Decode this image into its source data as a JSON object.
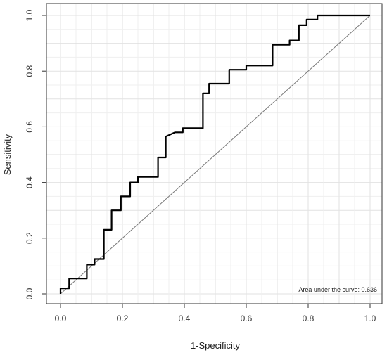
{
  "chart_data": {
    "type": "line",
    "xlabel": "1-Specificity",
    "ylabel": "Sensitivity",
    "xlim": [
      0,
      1
    ],
    "ylim": [
      0,
      1
    ],
    "xticks": [
      "0.0",
      "0.2",
      "0.4",
      "0.6",
      "0.8",
      "1.0"
    ],
    "yticks": [
      "0.0",
      "0.2",
      "0.4",
      "0.6",
      "0.8",
      "1.0"
    ],
    "grid": true,
    "annotation": "Area under the curve: 0.636",
    "reference_line": [
      [
        0,
        0
      ],
      [
        1,
        1
      ]
    ],
    "series": [
      {
        "points": [
          [
            0.0,
            0.0
          ],
          [
            0.0,
            0.02
          ],
          [
            0.028,
            0.02
          ],
          [
            0.028,
            0.055
          ],
          [
            0.085,
            0.055
          ],
          [
            0.085,
            0.105
          ],
          [
            0.11,
            0.105
          ],
          [
            0.11,
            0.125
          ],
          [
            0.14,
            0.125
          ],
          [
            0.14,
            0.23
          ],
          [
            0.165,
            0.23
          ],
          [
            0.165,
            0.3
          ],
          [
            0.195,
            0.3
          ],
          [
            0.195,
            0.35
          ],
          [
            0.225,
            0.35
          ],
          [
            0.225,
            0.4
          ],
          [
            0.25,
            0.4
          ],
          [
            0.25,
            0.42
          ],
          [
            0.315,
            0.42
          ],
          [
            0.315,
            0.49
          ],
          [
            0.34,
            0.49
          ],
          [
            0.34,
            0.565
          ],
          [
            0.37,
            0.58
          ],
          [
            0.395,
            0.58
          ],
          [
            0.395,
            0.595
          ],
          [
            0.46,
            0.595
          ],
          [
            0.46,
            0.72
          ],
          [
            0.48,
            0.72
          ],
          [
            0.48,
            0.755
          ],
          [
            0.545,
            0.755
          ],
          [
            0.545,
            0.805
          ],
          [
            0.6,
            0.805
          ],
          [
            0.6,
            0.82
          ],
          [
            0.685,
            0.82
          ],
          [
            0.685,
            0.895
          ],
          [
            0.74,
            0.895
          ],
          [
            0.74,
            0.91
          ],
          [
            0.77,
            0.91
          ],
          [
            0.77,
            0.965
          ],
          [
            0.795,
            0.965
          ],
          [
            0.795,
            0.985
          ],
          [
            0.83,
            0.985
          ],
          [
            0.83,
            1.0
          ],
          [
            1.0,
            1.0
          ]
        ]
      }
    ]
  }
}
